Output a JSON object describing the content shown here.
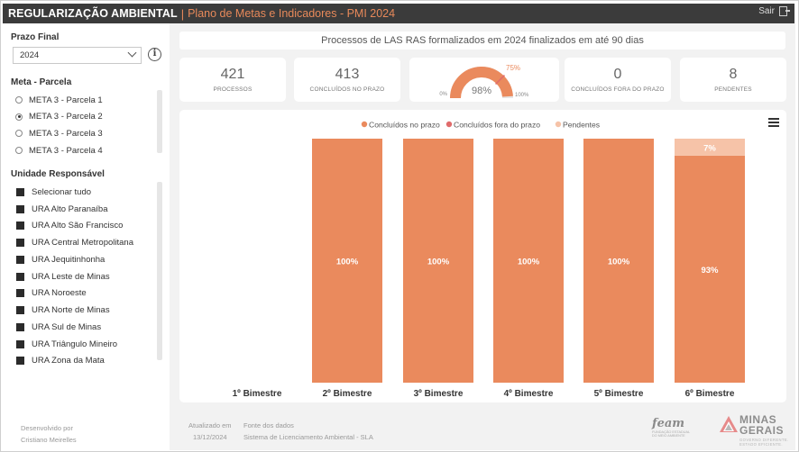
{
  "header": {
    "app_title": "REGULARIZAÇÃO AMBIENTAL",
    "separator": "|",
    "subtitle": "Plano de Metas e Indicadores - PMI 2024",
    "exit_label": "Sair"
  },
  "sidebar": {
    "period_label": "Prazo Final",
    "period_value": "2024",
    "info_symbol": "i",
    "goal_label": "Meta - Parcela",
    "goals": [
      {
        "label": "META 3 - Parcela 1",
        "selected": false
      },
      {
        "label": "META 3 - Parcela 2",
        "selected": true
      },
      {
        "label": "META 3 - Parcela 3",
        "selected": false
      },
      {
        "label": "META 3 - Parcela 4",
        "selected": false
      }
    ],
    "unit_label": "Unidade Responsável",
    "units": [
      "Selecionar tudo",
      "URA Alto Paranaíba",
      "URA Alto São Francisco",
      "URA Central Metropolitana",
      "URA Jequitinhonha",
      "URA Leste de Minas",
      "URA Noroeste",
      "URA Norte de Minas",
      "URA Sul de Minas",
      "URA Triângulo Mineiro",
      "URA Zona da Mata"
    ],
    "dev_label": "Desenvolvido por",
    "dev_name": "Cristiano Meirelles"
  },
  "main": {
    "headline": "Processos de LAS RAS formalizados em 2024 finalizados em até 90 dias",
    "kpis": [
      {
        "value": "421",
        "label": "PROCESSOS"
      },
      {
        "value": "413",
        "label": "CONCLUÍDOS NO PRAZO"
      },
      {
        "value": "0",
        "label": "CONCLUÍDOS FORA DO PRAZO"
      },
      {
        "value": "8",
        "label": "PENDENTES"
      }
    ],
    "gauge": {
      "value": 98,
      "value_label": "98%",
      "target_label": "75%",
      "min_label": "0%",
      "max_label": "100%",
      "target": 75
    },
    "footer": {
      "updated_label": "Atualizado em",
      "updated_date": "13/12/2024",
      "source_label": "Fonte dos dados",
      "source_name": "Sistema de Licenciamento Ambiental - SLA"
    },
    "logos": {
      "feam_word": "feam",
      "feam_sub_1": "FUNDAÇÃO ESTADUAL",
      "feam_sub_2": "DO MEIO AMBIENTE",
      "mg_word_1": "MINAS",
      "mg_word_2": "GERAIS",
      "mg_sub_1": "GOVERNO DIFERENTE.",
      "mg_sub_2": "ESTADO EFICIENTE."
    }
  },
  "colors": {
    "on_time": "#ea8a5d",
    "late": "#e06b6b",
    "pending": "#f6c3a8",
    "header_bg": "#3b3b3b",
    "accent": "#e8895a"
  },
  "chart_data": {
    "type": "bar",
    "stacked": true,
    "categories": [
      "1º Bimestre",
      "2º Bimestre",
      "3º Bimestre",
      "4º Bimestre",
      "5º Bimestre",
      "6º Bimestre"
    ],
    "series": [
      {
        "name": "Concluídos no prazo",
        "values": [
          null,
          100,
          100,
          100,
          100,
          93
        ],
        "labels": [
          "",
          "100%",
          "100%",
          "100%",
          "100%",
          "93%"
        ]
      },
      {
        "name": "Concluídos fora do prazo",
        "values": [
          null,
          0,
          0,
          0,
          0,
          0
        ],
        "labels": [
          "",
          "",
          "",
          "",
          "",
          ""
        ]
      },
      {
        "name": "Pendentes",
        "values": [
          null,
          0,
          0,
          0,
          0,
          7
        ],
        "labels": [
          "",
          "",
          "",
          "",
          "",
          "7%"
        ]
      }
    ],
    "ylim": [
      0,
      100
    ],
    "legend": "top-center",
    "grid": false
  }
}
